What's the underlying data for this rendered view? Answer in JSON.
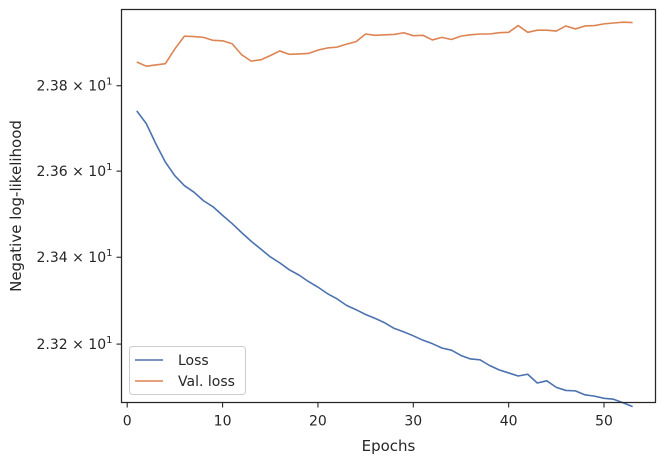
{
  "chart_data": {
    "type": "line",
    "xlabel": "Epochs",
    "ylabel": "Negative log-likelihood",
    "xlim": [
      -0.6,
      55.4
    ],
    "ylim": [
      23.0665,
      23.98
    ],
    "y_scale": "log",
    "x_ticks": [
      0,
      10,
      20,
      30,
      40,
      50
    ],
    "x_tick_labels": [
      "0",
      "10",
      "20",
      "30",
      "40",
      "50"
    ],
    "y_ticks": [
      23.2,
      23.4,
      23.6,
      23.8
    ],
    "y_tick_labels": [
      "2.32",
      "2.34",
      "2.36",
      "2.38"
    ],
    "y_tick_base": "× 10",
    "y_tick_exponent": "1",
    "grid": false,
    "legend_position": "lower-left",
    "x": [
      1,
      2,
      3,
      4,
      5,
      6,
      7,
      8,
      9,
      10,
      11,
      12,
      13,
      14,
      15,
      16,
      17,
      18,
      19,
      20,
      21,
      22,
      23,
      24,
      25,
      26,
      27,
      28,
      29,
      30,
      31,
      32,
      33,
      34,
      35,
      36,
      37,
      38,
      39,
      40,
      41,
      42,
      43,
      44,
      45,
      46,
      47,
      48,
      49,
      50,
      51,
      52,
      53
    ],
    "series": [
      {
        "name": "Loss",
        "color": "#4c72b0",
        "values": [
          23.741,
          23.711,
          23.664,
          23.621,
          23.589,
          23.566,
          23.551,
          23.531,
          23.517,
          23.497,
          23.478,
          23.457,
          23.437,
          23.419,
          23.401,
          23.387,
          23.371,
          23.359,
          23.344,
          23.331,
          23.316,
          23.304,
          23.289,
          23.279,
          23.268,
          23.259,
          23.249,
          23.236,
          23.228,
          23.219,
          23.209,
          23.201,
          23.191,
          23.186,
          23.174,
          23.166,
          23.164,
          23.151,
          23.141,
          23.134,
          23.127,
          23.131,
          23.111,
          23.116,
          23.101,
          23.094,
          23.093,
          23.084,
          23.081,
          23.076,
          23.074,
          23.066,
          23.057
        ]
      },
      {
        "name": "Val. loss",
        "color": "#dd8452",
        "values": [
          23.856,
          23.846,
          23.849,
          23.852,
          23.887,
          23.917,
          23.916,
          23.914,
          23.907,
          23.906,
          23.899,
          23.873,
          23.858,
          23.861,
          23.871,
          23.882,
          23.874,
          23.875,
          23.876,
          23.884,
          23.889,
          23.891,
          23.898,
          23.904,
          23.922,
          23.919,
          23.92,
          23.921,
          23.925,
          23.918,
          23.919,
          23.908,
          23.914,
          23.909,
          23.917,
          23.92,
          23.922,
          23.922,
          23.925,
          23.926,
          23.942,
          23.926,
          23.931,
          23.931,
          23.929,
          23.941,
          23.934,
          23.941,
          23.942,
          23.946,
          23.948,
          23.95,
          23.949
        ]
      }
    ]
  }
}
